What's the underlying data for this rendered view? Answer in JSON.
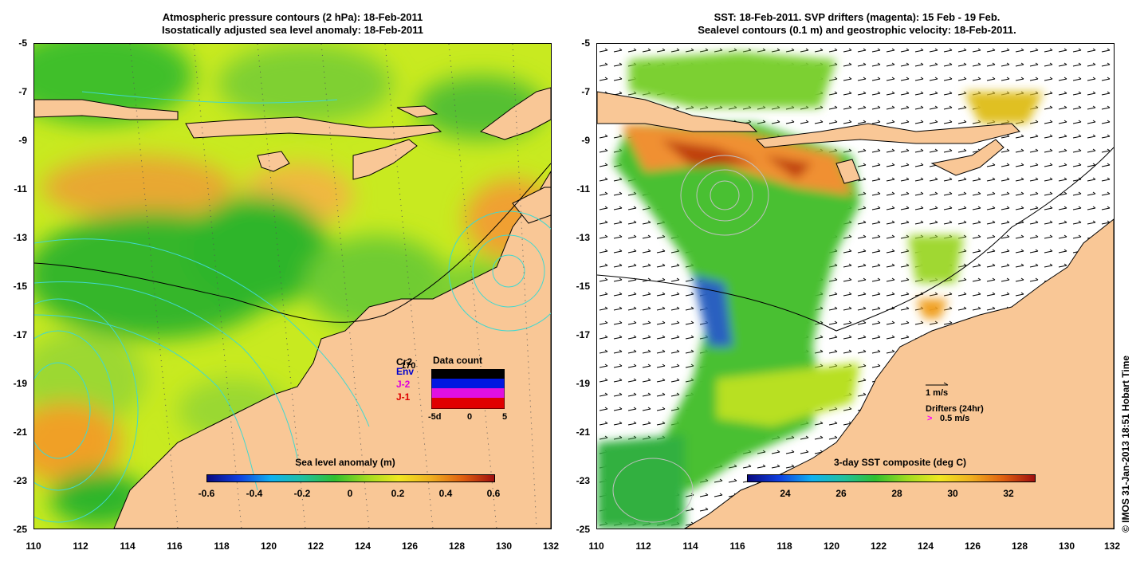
{
  "left_panel": {
    "title_line1": "Atmospheric pressure contours (2 hPa): 18-Feb-2011",
    "title_line2": "Isostatically adjusted sea level anomaly: 18-Feb-2011",
    "legend_title": "Sea level anomaly (m)",
    "colorbar_ticks": [
      "-0.6",
      "-0.4",
      "-0.2",
      "0",
      "0.2",
      "0.4",
      "0.6"
    ],
    "data_count": {
      "title": "Data count",
      "labels": [
        "Cr2",
        "Env",
        "J-2",
        "J-1"
      ],
      "label_colors": [
        "#000000",
        "#0000cc",
        "#dd00dd",
        "#dd0000"
      ],
      "overlay_number": "170",
      "axis_ticks": [
        "-5d",
        "0",
        "5"
      ]
    }
  },
  "right_panel": {
    "title_line1": "SST: 18-Feb-2011. SVP drifters (magenta): 15 Feb - 19 Feb.",
    "title_line2": "Sealevel contours (0.1 m) and geostrophic velocity: 18-Feb-2011.",
    "legend_title": "3-day SST composite (deg C)",
    "colorbar_ticks": [
      "24",
      "26",
      "28",
      "30",
      "32"
    ],
    "velocity_key": "1 m/s",
    "drifters_label": "Drifters (24hr)",
    "drifters_speed": "0.5 m/s",
    "drifters_symbol": ">"
  },
  "axes": {
    "y_ticks": [
      "-5",
      "-7",
      "-9",
      "-11",
      "-13",
      "-15",
      "-17",
      "-19",
      "-21",
      "-23",
      "-25"
    ],
    "x_ticks": [
      "110",
      "112",
      "114",
      "116",
      "118",
      "120",
      "122",
      "124",
      "126",
      "128",
      "130",
      "132"
    ]
  },
  "side_credit": "© IMOS 31-Jan-2013 18:51 Hobart Time",
  "colors": {
    "land": "#f9c796",
    "sea_green": "#3fbf2a",
    "sea_yellow": "#d8ee20",
    "sea_orange": "#f0a830",
    "contour_cyan": "#40d8d0",
    "drifter_magenta": "#ff00ff"
  }
}
